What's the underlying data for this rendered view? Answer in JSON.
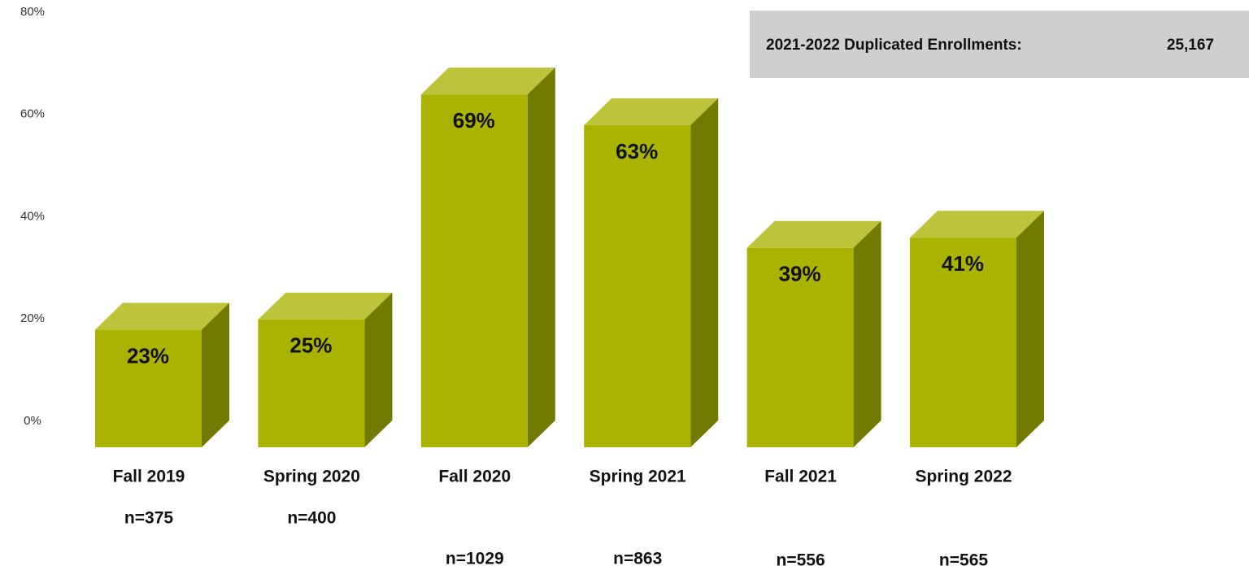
{
  "chart_data": {
    "type": "bar3d",
    "categories": [
      "Fall 2019",
      "Spring 2020",
      "Fall 2020",
      "Spring 2021",
      "Fall 2021",
      "Spring 2022"
    ],
    "values": [
      23,
      25,
      69,
      63,
      39,
      41
    ],
    "value_labels": [
      "23%",
      "25%",
      "69%",
      "63%",
      "39%",
      "41%"
    ],
    "n_labels": [
      "n=375",
      "n=400",
      "n=1029",
      "n=863",
      "n=556",
      "n=565"
    ],
    "color": "#aab300",
    "ylim": [
      0,
      80
    ],
    "yticks": [
      {
        "value": 0,
        "label": "0%"
      },
      {
        "value": 20,
        "label": "20%"
      },
      {
        "value": 40,
        "label": "40%"
      },
      {
        "value": 60,
        "label": "60%"
      },
      {
        "value": 80,
        "label": "80%"
      }
    ],
    "grid": false,
    "annotation": {
      "label": "2021-2022 Duplicated Enrollments:",
      "value": "25,167"
    }
  }
}
